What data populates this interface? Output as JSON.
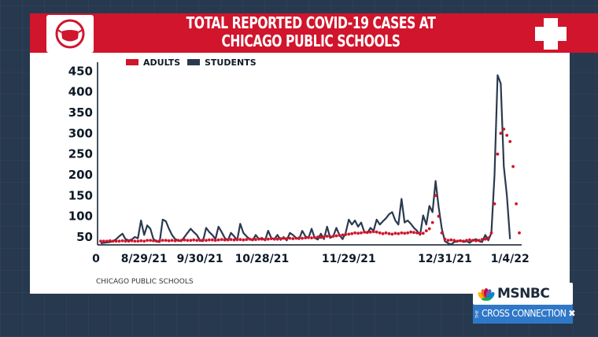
{
  "header": {
    "title": "TOTAL REPORTED COVID-19 CASES AT CHICAGO PUBLIC SCHOOLS"
  },
  "icons": {
    "mask": "masked-face-icon",
    "cross": "medical-cross-icon",
    "peacock": "peacock-icon"
  },
  "colors": {
    "brand_red": "#d0152c",
    "students_line": "#2b3a4f",
    "adults_dots": "#d0152c",
    "background": "#27394f",
    "show_bar": "#2f78c8"
  },
  "legend": {
    "adults": "ADULTS",
    "students": "STUDENTS"
  },
  "source": "CHICAGO PUBLIC SCHOOLS",
  "network": {
    "logo": "MSNBC",
    "show_prefix": "THE",
    "show_name": "CROSS CONNECTION"
  },
  "chart_data": {
    "type": "line",
    "title": "TOTAL REPORTED COVID-19 CASES AT CHICAGO PUBLIC SCHOOLS",
    "xlabel": "",
    "ylabel": "",
    "y_ticks": [
      50,
      100,
      150,
      200,
      250,
      300,
      350,
      400,
      450
    ],
    "ylim": [
      33,
      460
    ],
    "x_tick_labels": [
      "0",
      "8/29/21",
      "9/30/21",
      "10/28/21",
      "11/29/21",
      "12/31/21",
      "1/4/22"
    ],
    "x_tick_index": [
      0,
      14,
      32,
      52,
      80,
      111,
      132
    ],
    "xlim": [
      0,
      135
    ],
    "grid": false,
    "legend_position": "top-left",
    "series": [
      {
        "name": "STUDENTS",
        "style": "line",
        "color": "#2b3a4f",
        "values": [
          35,
          36,
          37,
          38,
          40,
          45,
          52,
          58,
          45,
          42,
          44,
          50,
          47,
          90,
          55,
          78,
          70,
          45,
          40,
          38,
          92,
          88,
          70,
          55,
          45,
          42,
          40,
          50,
          60,
          70,
          62,
          55,
          42,
          40,
          72,
          62,
          55,
          45,
          75,
          62,
          48,
          42,
          60,
          52,
          42,
          82,
          60,
          52,
          45,
          42,
          55,
          45,
          48,
          42,
          65,
          48,
          45,
          55,
          43,
          50,
          42,
          60,
          55,
          48,
          45,
          65,
          52,
          47,
          70,
          48,
          44,
          58,
          45,
          75,
          48,
          52,
          72,
          55,
          45,
          60,
          92,
          80,
          90,
          75,
          85,
          62,
          60,
          72,
          65,
          92,
          80,
          88,
          95,
          105,
          110,
          90,
          80,
          142,
          85,
          90,
          82,
          72,
          65,
          55,
          102,
          80,
          125,
          110,
          185,
          122,
          70,
          40,
          35,
          32,
          38,
          40,
          42,
          38,
          40,
          36,
          42,
          45,
          40,
          38,
          55,
          42,
          60,
          200,
          440,
          420,
          220,
          150,
          45
        ]
      },
      {
        "name": "ADULTS",
        "style": "dots",
        "color": "#d0152c",
        "values": [
          40,
          40,
          40,
          41,
          40,
          40,
          40,
          41,
          40,
          40,
          41,
          40,
          40,
          41,
          40,
          42,
          42,
          41,
          40,
          41,
          42,
          42,
          41,
          42,
          41,
          42,
          42,
          43,
          42,
          42,
          43,
          42,
          42,
          43,
          42,
          43,
          43,
          42,
          43,
          44,
          43,
          43,
          44,
          43,
          44,
          44,
          43,
          44,
          45,
          44,
          44,
          45,
          45,
          44,
          45,
          46,
          45,
          45,
          46,
          47,
          46,
          47,
          46,
          47,
          48,
          47,
          48,
          49,
          48,
          49,
          50,
          49,
          50,
          52,
          51,
          52,
          53,
          54,
          55,
          56,
          57,
          58,
          60,
          59,
          60,
          62,
          61,
          62,
          63,
          62,
          60,
          58,
          60,
          58,
          57,
          59,
          58,
          60,
          59,
          60,
          62,
          61,
          60,
          58,
          59,
          65,
          70,
          85,
          150,
          100,
          60,
          45,
          42,
          43,
          42,
          40,
          41,
          40,
          42,
          43,
          42,
          41,
          42,
          44,
          45,
          48,
          60,
          130,
          250,
          300,
          310,
          295,
          280,
          220,
          130,
          60
        ]
      }
    ]
  }
}
